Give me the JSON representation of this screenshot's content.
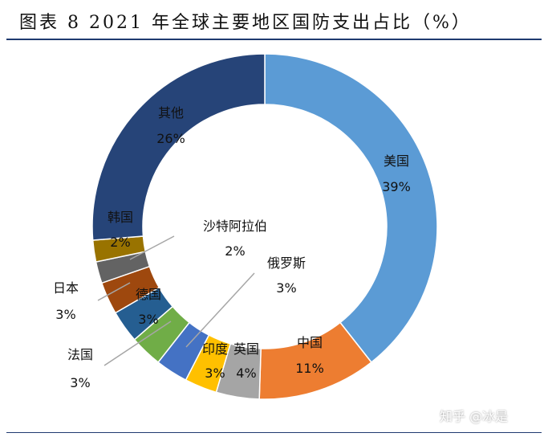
{
  "header": {
    "title": "图表 8 2021 年全球主要地区国防支出占比（%）"
  },
  "watermark": "知乎 @冰是",
  "chart_data": {
    "type": "donut",
    "title": "图表 8 2021 年全球主要地区国防支出占比（%）",
    "unit": "%",
    "start_angle_deg": 0,
    "direction": "clockwise",
    "slices": [
      {
        "name": "美国",
        "value": 39,
        "label": "39%",
        "color": "#5b9bd5"
      },
      {
        "name": "中国",
        "value": 11,
        "label": "11%",
        "color": "#ed7d31"
      },
      {
        "name": "英国",
        "value": 4,
        "label": "4%",
        "color": "#a5a5a5"
      },
      {
        "name": "印度",
        "value": 3,
        "label": "3%",
        "color": "#ffc000"
      },
      {
        "name": "俄罗斯",
        "value": 3,
        "label": "3%",
        "color": "#4472c4"
      },
      {
        "name": "法国",
        "value": 3,
        "label": "3%",
        "color": "#70ad47"
      },
      {
        "name": "德国",
        "value": 3,
        "label": "3%",
        "color": "#255e91"
      },
      {
        "name": "日本",
        "value": 3,
        "label": "3%",
        "color": "#9e480e"
      },
      {
        "name": "沙特阿拉伯",
        "value": 2,
        "label": "2%",
        "color": "#636363"
      },
      {
        "name": "韩国",
        "value": 2,
        "label": "2%",
        "color": "#997300"
      },
      {
        "name": "其他",
        "value": 26,
        "label": "26%",
        "color": "#264478"
      }
    ]
  }
}
